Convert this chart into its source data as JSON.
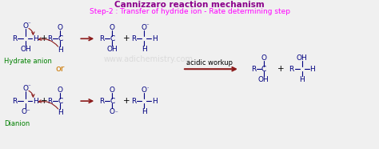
{
  "title": "Cannizzaro reaction mechanism",
  "subtitle": "Step-2 : Transfer of hydride ion - Rate determining step",
  "title_color": "#8B008B",
  "subtitle_color": "#FF00FF",
  "bg_color": "#F0F0F0",
  "blue": "#000080",
  "green": "#008000",
  "red_arrow": "#8B1A1A",
  "orange": "#CC7700",
  "watermark": "www.adichemistry.com",
  "title_fs": 7.5,
  "subtitle_fs": 6.5,
  "mol_fs": 6.5,
  "sup_fs": 5.0,
  "label_fs": 6.0
}
